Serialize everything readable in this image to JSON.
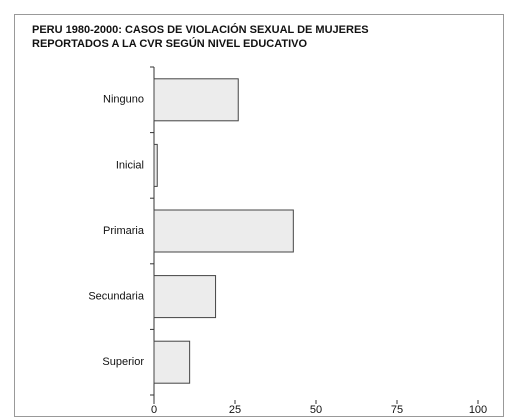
{
  "chart_data": {
    "type": "hbar",
    "title": [
      "PERU 1980-2000: CASOS DE VIOLACIÓN SEXUAL DE MUJERES",
      "REPORTADOS A LA CVR SEGÚN NIVEL EDUCATIVO"
    ],
    "categories": [
      "Ninguno",
      "Inicial",
      "Primaria",
      "Secundaria",
      "Superior"
    ],
    "values": [
      26,
      1,
      43,
      19,
      11
    ],
    "color": "#ececec",
    "xlim": [
      0,
      100
    ],
    "xticks": [
      0,
      25,
      50,
      75,
      100
    ]
  }
}
